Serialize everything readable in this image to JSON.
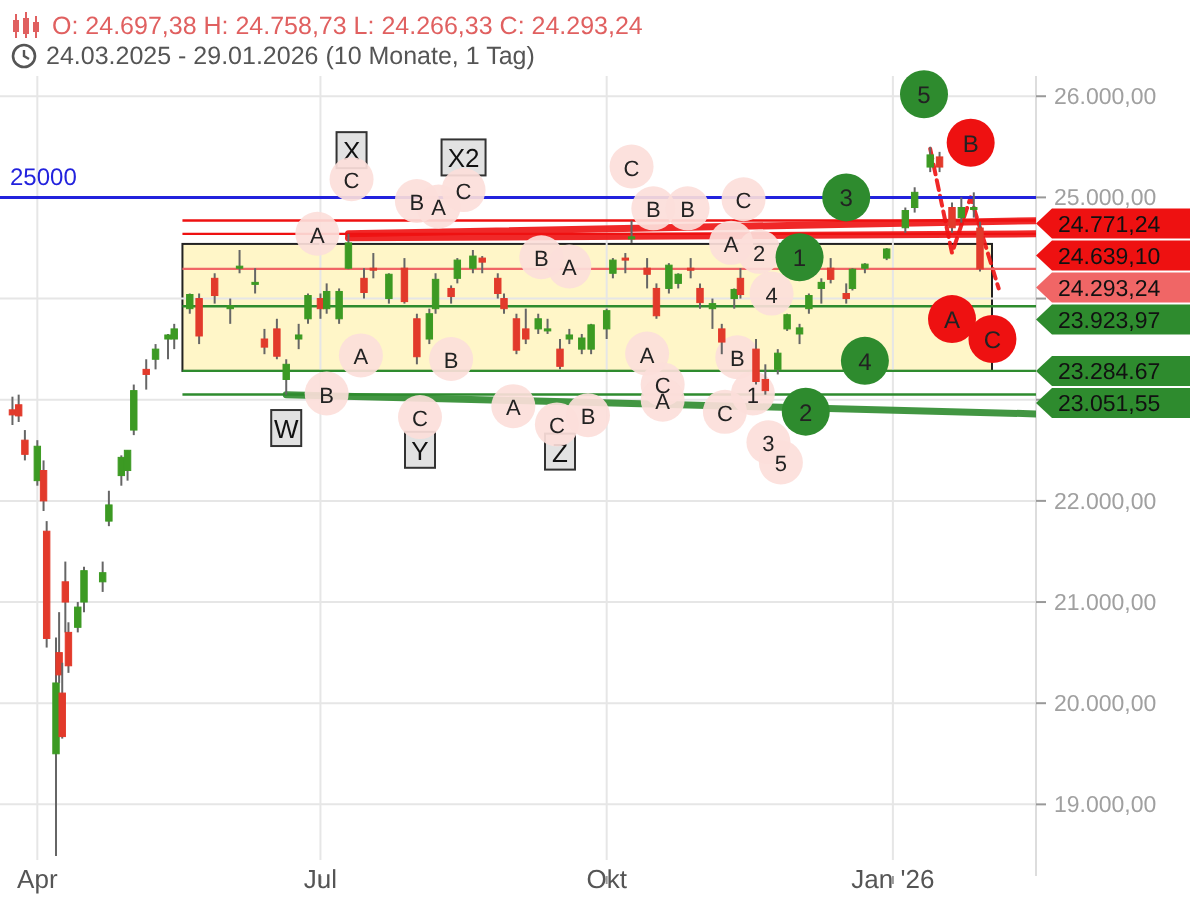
{
  "chart_data": {
    "type": "candlestick",
    "title": "O: 24.697,38  H: 24.758,73  L: 24.266,33  C: 24.293,24",
    "subtitle": "24.03.2025 - 29.01.2026  (10 Monate, 1 Tag)",
    "x": [
      "2025-03-24",
      "2025-03-26",
      "2025-03-28",
      "2025-04-01",
      "2025-04-03",
      "2025-04-04",
      "2025-04-07",
      "2025-04-08",
      "2025-04-09",
      "2025-04-10",
      "2025-04-11",
      "2025-04-14",
      "2025-04-16",
      "2025-04-22",
      "2025-04-24",
      "2025-04-28",
      "2025-04-30",
      "2025-05-02",
      "2025-05-06",
      "2025-05-09",
      "2025-05-13",
      "2025-05-15",
      "2025-05-20",
      "2025-05-23",
      "2025-05-28",
      "2025-06-02",
      "2025-06-05",
      "2025-06-10",
      "2025-06-13",
      "2025-06-17",
      "2025-06-20",
      "2025-06-24",
      "2025-06-27",
      "2025-07-01",
      "2025-07-03",
      "2025-07-07",
      "2025-07-10",
      "2025-07-15",
      "2025-07-18",
      "2025-07-23",
      "2025-07-28",
      "2025-08-01",
      "2025-08-05",
      "2025-08-07",
      "2025-08-12",
      "2025-08-14",
      "2025-08-19",
      "2025-08-22",
      "2025-08-27",
      "2025-08-29",
      "2025-09-02",
      "2025-09-05",
      "2025-09-09",
      "2025-09-12",
      "2025-09-16",
      "2025-09-19",
      "2025-09-23",
      "2025-09-26",
      "2025-10-01",
      "2025-10-03",
      "2025-10-07",
      "2025-10-09",
      "2025-10-14",
      "2025-10-17",
      "2025-10-21",
      "2025-10-24",
      "2025-10-28",
      "2025-10-31",
      "2025-11-04",
      "2025-11-07",
      "2025-11-11",
      "2025-11-13",
      "2025-11-18",
      "2025-11-21",
      "2025-11-25",
      "2025-11-28",
      "2025-12-02",
      "2025-12-05",
      "2025-12-09",
      "2025-12-12",
      "2025-12-17",
      "2025-12-19",
      "2025-12-23",
      "2025-12-30",
      "2026-01-05",
      "2026-01-08",
      "2026-01-13",
      "2026-01-16",
      "2026-01-20",
      "2026-01-23",
      "2026-01-27",
      "2026-01-29"
    ],
    "ohlc": [
      [
        22900,
        23030,
        22750,
        22850
      ],
      [
        22950,
        23050,
        22780,
        22840
      ],
      [
        22600,
        22700,
        22400,
        22460
      ],
      [
        22200,
        22600,
        22150,
        22540
      ],
      [
        22300,
        22400,
        21900,
        22000
      ],
      [
        21700,
        21800,
        20550,
        20640
      ],
      [
        19500,
        20650,
        18490,
        20200
      ],
      [
        20500,
        20900,
        20200,
        20280
      ],
      [
        20100,
        20400,
        19650,
        19670
      ],
      [
        21200,
        21400,
        20700,
        21000
      ],
      [
        20700,
        20800,
        20300,
        20370
      ],
      [
        20750,
        21000,
        20700,
        20950
      ],
      [
        21000,
        21350,
        20900,
        21310
      ],
      [
        21200,
        21400,
        21100,
        21290
      ],
      [
        21800,
        22100,
        21750,
        21960
      ],
      [
        22250,
        22450,
        22150,
        22430
      ],
      [
        22300,
        22500,
        22200,
        22500
      ],
      [
        22700,
        23150,
        22650,
        23090
      ],
      [
        23300,
        23400,
        23100,
        23250
      ],
      [
        23400,
        23550,
        23300,
        23500
      ],
      [
        23600,
        23650,
        23400,
        23640
      ],
      [
        23600,
        23750,
        23500,
        23700
      ],
      [
        23900,
        24050,
        23850,
        24040
      ],
      [
        24000,
        24050,
        23550,
        23630
      ],
      [
        24200,
        24250,
        23950,
        24030
      ],
      [
        23900,
        24000,
        23750,
        23930
      ],
      [
        24300,
        24480,
        24250,
        24320
      ],
      [
        24150,
        24300,
        24050,
        24160
      ],
      [
        23600,
        23700,
        23450,
        23520
      ],
      [
        23700,
        23800,
        23400,
        23430
      ],
      [
        23200,
        23400,
        23050,
        23350
      ],
      [
        23600,
        23750,
        23500,
        23640
      ],
      [
        23800,
        24050,
        23750,
        24030
      ],
      [
        24000,
        24050,
        23800,
        23900
      ],
      [
        23900,
        24150,
        23850,
        24070
      ],
      [
        23800,
        24100,
        23750,
        24070
      ],
      [
        24300,
        24640,
        24290,
        24550
      ],
      [
        24200,
        24300,
        24000,
        24060
      ],
      [
        24300,
        24450,
        24200,
        24290
      ],
      [
        24000,
        24250,
        23950,
        24240
      ],
      [
        24300,
        24400,
        23950,
        23970
      ],
      [
        23800,
        23850,
        23350,
        23425
      ],
      [
        23600,
        23900,
        23550,
        23850
      ],
      [
        23900,
        24250,
        23850,
        24190
      ],
      [
        24100,
        24130,
        23950,
        24020
      ],
      [
        24200,
        24400,
        24150,
        24380
      ],
      [
        24300,
        24480,
        24250,
        24420
      ],
      [
        24400,
        24420,
        24250,
        24360
      ],
      [
        24200,
        24250,
        24000,
        24050
      ],
      [
        24000,
        24050,
        23850,
        23900
      ],
      [
        23800,
        23850,
        23450,
        23490
      ],
      [
        23700,
        23900,
        23550,
        23600
      ],
      [
        23700,
        23850,
        23650,
        23800
      ],
      [
        23700,
        23800,
        23650,
        23700
      ],
      [
        23500,
        23600,
        23300,
        23330
      ],
      [
        23600,
        23700,
        23550,
        23640
      ],
      [
        23500,
        23650,
        23450,
        23610
      ],
      [
        23500,
        23750,
        23450,
        23740
      ],
      [
        23700,
        23900,
        23600,
        23880
      ],
      [
        24250,
        24400,
        24200,
        24380
      ],
      [
        24400,
        24450,
        24250,
        24390
      ],
      [
        24600,
        24771,
        24550,
        24610
      ],
      [
        24300,
        24400,
        24100,
        24240
      ],
      [
        24100,
        24150,
        23800,
        23830
      ],
      [
        24100,
        24350,
        24050,
        24330
      ],
      [
        24150,
        24250,
        24100,
        24240
      ],
      [
        24300,
        24400,
        24200,
        24280
      ],
      [
        24100,
        24150,
        23900,
        23960
      ],
      [
        23900,
        24000,
        23700,
        23950
      ],
      [
        23700,
        23750,
        23450,
        23570
      ],
      [
        24000,
        24100,
        23900,
        24090
      ],
      [
        24200,
        24300,
        24000,
        24040
      ],
      [
        23500,
        23600,
        23150,
        23180
      ],
      [
        23200,
        23350,
        23050,
        23090
      ],
      [
        23300,
        23500,
        23250,
        23460
      ],
      [
        23700,
        23850,
        23680,
        23840
      ],
      [
        23650,
        23750,
        23550,
        23710
      ],
      [
        23900,
        24050,
        23850,
        24030
      ],
      [
        24100,
        24200,
        23950,
        24160
      ],
      [
        24300,
        24400,
        24150,
        24190
      ],
      [
        24050,
        24150,
        23950,
        24000
      ],
      [
        24100,
        24300,
        24080,
        24290
      ],
      [
        24300,
        24350,
        24250,
        24340
      ],
      [
        24400,
        24500,
        24380,
        24490
      ],
      [
        24700,
        24900,
        24650,
        24870
      ],
      [
        24900,
        25100,
        24850,
        25050
      ],
      [
        25300,
        25500,
        25250,
        25420
      ],
      [
        25400,
        25450,
        25250,
        25300
      ],
      [
        24900,
        24950,
        24650,
        24700
      ],
      [
        24800,
        25000,
        24750,
        24900
      ],
      [
        24900,
        25050,
        24800,
        24900
      ],
      [
        24697.38,
        24758.73,
        24266.33,
        24293.24
      ]
    ],
    "colors": [
      "#e23a2b",
      "#e23a2b",
      "#e23a2b",
      "#3c9a23",
      "#e23a2b",
      "#e23a2b",
      "#3c9a23",
      "#e23a2b",
      "#e23a2b",
      "#e23a2b",
      "#e23a2b",
      "#3c9a23",
      "#3c9a23",
      "#3c9a23",
      "#3c9a23",
      "#3c9a23",
      "#3c9a23",
      "#3c9a23",
      "#e23a2b",
      "#3c9a23",
      "#3c9a23",
      "#3c9a23",
      "#3c9a23",
      "#e23a2b",
      "#e23a2b",
      "#3c9a23",
      "#3c9a23",
      "#3c9a23",
      "#e23a2b",
      "#e23a2b",
      "#3c9a23",
      "#3c9a23",
      "#3c9a23",
      "#e23a2b",
      "#3c9a23",
      "#3c9a23",
      "#3c9a23",
      "#e23a2b",
      "#e23a2b",
      "#3c9a23",
      "#e23a2b",
      "#e23a2b",
      "#3c9a23",
      "#3c9a23",
      "#e23a2b",
      "#3c9a23",
      "#3c9a23",
      "#e23a2b",
      "#e23a2b",
      "#e23a2b",
      "#e23a2b",
      "#e23a2b",
      "#3c9a23",
      "#3c9a23",
      "#e23a2b",
      "#3c9a23",
      "#3c9a23",
      "#3c9a23",
      "#3c9a23",
      "#3c9a23",
      "#e23a2b",
      "#3c9a23",
      "#e23a2b",
      "#e23a2b",
      "#3c9a23",
      "#3c9a23",
      "#e23a2b",
      "#e23a2b",
      "#3c9a23",
      "#e23a2b",
      "#3c9a23",
      "#e23a2b",
      "#e23a2b",
      "#e23a2b",
      "#3c9a23",
      "#3c9a23",
      "#3c9a23",
      "#3c9a23",
      "#3c9a23",
      "#e23a2b",
      "#e23a2b",
      "#3c9a23",
      "#3c9a23",
      "#3c9a23",
      "#3c9a23",
      "#3c9a23",
      "#3c9a23",
      "#e23a2b",
      "#e23a2b",
      "#3c9a23",
      "#3c9a23",
      "#e23a2b"
    ],
    "series": [
      {
        "type": "line",
        "color": "#ee1111",
        "x": [
          "2025-07-10",
          "2026-02-16"
        ],
        "values": [
          24640,
          24770
        ]
      },
      {
        "type": "line",
        "color": "#ee1111",
        "x": [
          "2025-07-10",
          "2026-02-16"
        ],
        "values": [
          24600,
          24640
        ]
      },
      {
        "type": "line",
        "color": "#2e8b2e",
        "x": [
          "2025-06-20",
          "2026-02-16"
        ],
        "values": [
          23050,
          22860
        ]
      },
      {
        "type": "line",
        "color": "#ee1111",
        "line_style": "dashed",
        "x": [
          "2026-01-13",
          "2026-01-20",
          "2026-01-26",
          "2026-02-04"
        ],
        "values": [
          25480,
          24450,
          25000,
          24100
        ]
      }
    ],
    "xlim": [
      "2025-03-20",
      "2026-02-16"
    ],
    "xticks": [
      {
        "value": "2025-04-01",
        "label": "Apr"
      },
      {
        "value": "2025-07-01",
        "label": "Jul"
      },
      {
        "value": "2025-10-01",
        "label": "Okt"
      },
      {
        "value": "2026-01-01",
        "label": "Jan '26"
      }
    ],
    "ylim": [
      18450,
      26200
    ],
    "yticks": [
      {
        "value": 19000,
        "label": "19.000,00"
      },
      {
        "value": 20000,
        "label": "20.000,00"
      },
      {
        "value": 21000,
        "label": "21.000,00"
      },
      {
        "value": 22000,
        "label": "22.000,00"
      },
      {
        "value": 23000,
        "label": null
      },
      {
        "value": 24000,
        "label": null
      },
      {
        "value": 25000,
        "label": "25.000,00"
      },
      {
        "value": 26000,
        "label": "26.000,00"
      }
    ],
    "grid": true,
    "ref_lines": [
      {
        "axis": "y",
        "value": 25000,
        "label": "25000",
        "color": "#2222dd"
      },
      {
        "axis": "y",
        "value": 24771.24,
        "label": "24.771,24",
        "color": "#ee1111"
      },
      {
        "axis": "y",
        "value": 24639.1,
        "label": "24.639,10",
        "color": "#ee1111"
      },
      {
        "axis": "y",
        "value": 24293.24,
        "label": "24.293,24",
        "color": "#f06666"
      },
      {
        "axis": "y",
        "value": 23923.97,
        "label": "23.923,97",
        "color": "#2e8b2e"
      },
      {
        "axis": "y",
        "value": 23284.67,
        "label": "23.284.67",
        "color": "#2e8b2e"
      },
      {
        "axis": "y",
        "value": 23051.55,
        "label": "23.051,55",
        "color": "#2e8b2e"
      }
    ],
    "bands": [
      {
        "axis": "y",
        "from": 23284.67,
        "to": 24540,
        "color": "#fff6c8"
      }
    ],
    "annotations": [
      {
        "text": "W",
        "x": "2025-06-20",
        "y": 22720
      },
      {
        "text": "X",
        "x": "2025-07-11",
        "y": 25467
      },
      {
        "text": "X2",
        "x": "2025-08-16",
        "y": 25395
      },
      {
        "text": "Y",
        "x": "2025-08-02",
        "y": 22505
      },
      {
        "text": "Z",
        "x": "2025-09-16",
        "y": 22487
      },
      {
        "text": "A",
        "x": "2025-06-30",
        "y": 24641
      },
      {
        "text": "C",
        "x": "2025-07-11",
        "y": 25180
      },
      {
        "text": "B",
        "x": "2025-07-03",
        "y": 23061
      },
      {
        "text": "A",
        "x": "2025-07-14",
        "y": 23438
      },
      {
        "text": "B",
        "x": "2025-08-01",
        "y": 24964
      },
      {
        "text": "A",
        "x": "2025-08-08",
        "y": 24910
      },
      {
        "text": "C",
        "x": "2025-08-16",
        "y": 25072
      },
      {
        "text": "B",
        "x": "2025-08-12",
        "y": 23402
      },
      {
        "text": "C",
        "x": "2025-08-02",
        "y": 22828
      },
      {
        "text": "A",
        "x": "2025-09-01",
        "y": 22936
      },
      {
        "text": "B",
        "x": "2025-09-10",
        "y": 24408
      },
      {
        "text": "A",
        "x": "2025-09-19",
        "y": 24318
      },
      {
        "text": "C",
        "x": "2025-09-15",
        "y": 22756
      },
      {
        "text": "B",
        "x": "2025-09-25",
        "y": 22846
      },
      {
        "text": "C",
        "x": "2025-10-09",
        "y": 25305
      },
      {
        "text": "B",
        "x": "2025-10-16",
        "y": 24892
      },
      {
        "text": "B",
        "x": "2025-10-27",
        "y": 24892
      },
      {
        "text": "C",
        "x": "2025-11-14",
        "y": 24982
      },
      {
        "text": "A",
        "x": "2025-11-10",
        "y": 24551
      },
      {
        "text": "2",
        "x": "2025-11-19",
        "y": 24462
      },
      {
        "text": "4",
        "x": "2025-11-23",
        "y": 24049
      },
      {
        "text": "A",
        "x": "2025-10-14",
        "y": 23456
      },
      {
        "text": "C",
        "x": "2025-10-19",
        "y": 23151
      },
      {
        "text": "A",
        "x": "2025-10-19",
        "y": 23000
      },
      {
        "text": "B",
        "x": "2025-11-12",
        "y": 23420
      },
      {
        "text": "1",
        "x": "2025-11-17",
        "y": 23061
      },
      {
        "text": "C",
        "x": "2025-11-08",
        "y": 22880
      },
      {
        "text": "3",
        "x": "2025-11-22",
        "y": 22580
      },
      {
        "text": "5",
        "x": "2025-11-26",
        "y": 22380
      },
      {
        "text": "1",
        "x": "2025-12-02",
        "y": 24408
      },
      {
        "text": "2",
        "x": "2025-12-04",
        "y": 22882
      },
      {
        "text": "3",
        "x": "2025-12-17",
        "y": 25000
      },
      {
        "text": "4",
        "x": "2025-12-23",
        "y": 23384
      },
      {
        "text": "5",
        "x": "2026-01-11",
        "y": 26020
      },
      {
        "text": "A",
        "x": "2026-01-20",
        "y": 23797
      },
      {
        "text": "B",
        "x": "2026-01-26",
        "y": 25540
      },
      {
        "text": "C",
        "x": "2026-02-02",
        "y": 23600
      }
    ]
  }
}
